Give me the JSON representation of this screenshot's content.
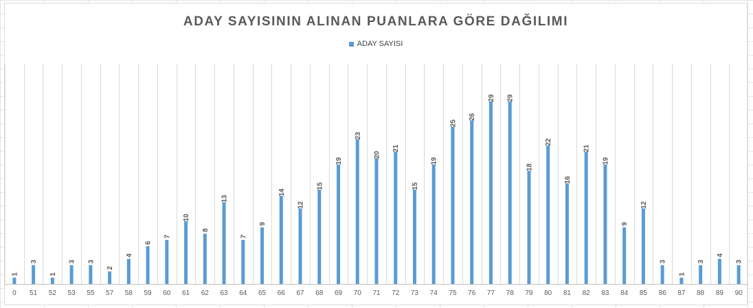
{
  "chart_data": {
    "type": "bar",
    "title": "ADAY SAYISININ ALINAN PUANLARA GÖRE DAĞILIMI",
    "xlabel": "",
    "ylabel": "",
    "categories": [
      "0",
      "51",
      "52",
      "53",
      "55",
      "57",
      "58",
      "59",
      "60",
      "61",
      "62",
      "63",
      "64",
      "65",
      "66",
      "67",
      "68",
      "69",
      "70",
      "71",
      "72",
      "73",
      "74",
      "75",
      "76",
      "77",
      "78",
      "79",
      "80",
      "81",
      "82",
      "83",
      "84",
      "85",
      "86",
      "87",
      "88",
      "89",
      "90"
    ],
    "series": [
      {
        "name": "ADAY SAYISI",
        "values": [
          1,
          3,
          1,
          3,
          3,
          2,
          4,
          6,
          7,
          10,
          8,
          13,
          7,
          9,
          14,
          12,
          15,
          19,
          23,
          20,
          21,
          15,
          19,
          25,
          26,
          29,
          29,
          18,
          22,
          16,
          21,
          19,
          9,
          12,
          3,
          1,
          3,
          4,
          3
        ]
      }
    ],
    "ylim": [
      0,
      35
    ],
    "grid": true,
    "legend_position": "top",
    "data_labels": true,
    "bar_color": "#5b9bd5",
    "label_color": "#595959"
  }
}
